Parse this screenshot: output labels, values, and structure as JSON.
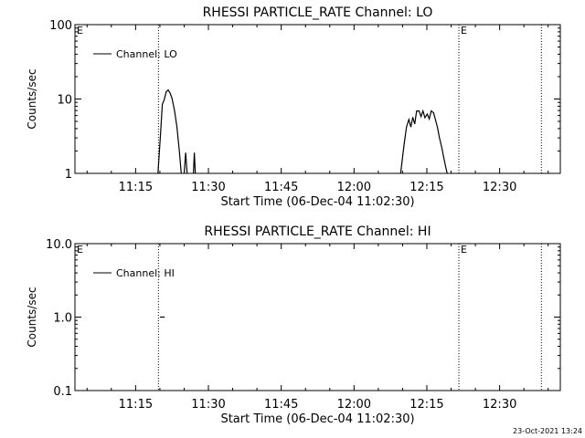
{
  "footer": {
    "timestamp": "23-Oct-2021 13:24"
  },
  "chart_data": [
    {
      "type": "line",
      "title": "RHESSI PARTICLE_RATE Channel: LO",
      "xlabel": "Start Time (06-Dec-04 11:02:30)",
      "ylabel": "Counts/sec",
      "yscale": "log",
      "ylim": [
        1,
        100
      ],
      "ytick_labels": [
        "1",
        "10",
        "100"
      ],
      "ytick_values": [
        1,
        10,
        100
      ],
      "xlim_minutes": [
        0,
        100
      ],
      "xtick_labels": [
        "11:15",
        "11:30",
        "11:45",
        "12:00",
        "12:15",
        "12:30"
      ],
      "xtick_minutes": [
        12.5,
        27.5,
        42.5,
        57.5,
        72.5,
        87.5
      ],
      "legend": {
        "label": "Channel: LO",
        "placement": "top-left"
      },
      "markers": [
        {
          "minute": 17.2,
          "label": ""
        },
        {
          "minute": 79.1,
          "label": "E"
        },
        {
          "minute": 96.1,
          "label": ""
        }
      ],
      "corner_label": "E",
      "grid": false,
      "series": [
        {
          "name": "Channel: LO",
          "segments": [
            [
              [
                17.1,
                1
              ],
              [
                17.6,
                3.2
              ],
              [
                18.0,
                8.5
              ],
              [
                18.4,
                9.8
              ],
              [
                18.8,
                12.5
              ],
              [
                19.2,
                13.2
              ],
              [
                19.6,
                12.0
              ],
              [
                20.0,
                10.2
              ],
              [
                20.5,
                7.0
              ],
              [
                21.0,
                4.3
              ],
              [
                21.5,
                2.0
              ],
              [
                21.9,
                1
              ]
            ],
            [
              [
                22.5,
                1
              ],
              [
                22.8,
                1.9
              ],
              [
                23.1,
                1
              ]
            ],
            [
              [
                24.4,
                1
              ],
              [
                24.6,
                1.9
              ],
              [
                24.8,
                1
              ]
            ],
            [
              [
                67.1,
                1
              ],
              [
                67.8,
                2.4
              ],
              [
                68.3,
                4.2
              ],
              [
                68.8,
                5.3
              ],
              [
                69.2,
                4.2
              ],
              [
                69.6,
                5.7
              ],
              [
                70.0,
                4.6
              ],
              [
                70.4,
                6.9
              ],
              [
                70.9,
                6.9
              ],
              [
                71.3,
                5.8
              ],
              [
                71.7,
                6.9
              ],
              [
                72.1,
                5.6
              ],
              [
                72.6,
                6.3
              ],
              [
                73.0,
                5.4
              ],
              [
                73.4,
                6.9
              ],
              [
                73.9,
                6.5
              ],
              [
                74.3,
                5.2
              ],
              [
                74.7,
                4.1
              ],
              [
                75.1,
                3.0
              ],
              [
                75.6,
                2.2
              ],
              [
                76.0,
                1.6
              ],
              [
                76.4,
                1.2
              ],
              [
                76.7,
                1
              ]
            ]
          ]
        }
      ]
    },
    {
      "type": "line",
      "title": "RHESSI PARTICLE_RATE Channel: HI",
      "xlabel": "Start Time (06-Dec-04 11:02:30)",
      "ylabel": "Counts/sec",
      "yscale": "log",
      "ylim": [
        0.1,
        10
      ],
      "ytick_labels": [
        "0.1",
        "1.0",
        "10.0"
      ],
      "ytick_values": [
        0.1,
        1,
        10
      ],
      "xlim_minutes": [
        0,
        100
      ],
      "xtick_labels": [
        "11:15",
        "11:30",
        "11:45",
        "12:00",
        "12:15",
        "12:30"
      ],
      "xtick_minutes": [
        12.5,
        27.5,
        42.5,
        57.5,
        72.5,
        87.5
      ],
      "legend": {
        "label": "Channel: HI",
        "placement": "top-left"
      },
      "markers": [
        {
          "minute": 17.2,
          "label": ""
        },
        {
          "minute": 79.1,
          "label": "E"
        },
        {
          "minute": 96.1,
          "label": ""
        }
      ],
      "corner_label": "E",
      "grid": false,
      "series": [
        {
          "name": "Channel: HI",
          "segments": [
            [
              [
                17.5,
                1.0
              ],
              [
                18.5,
                1.0
              ]
            ]
          ]
        }
      ]
    }
  ]
}
